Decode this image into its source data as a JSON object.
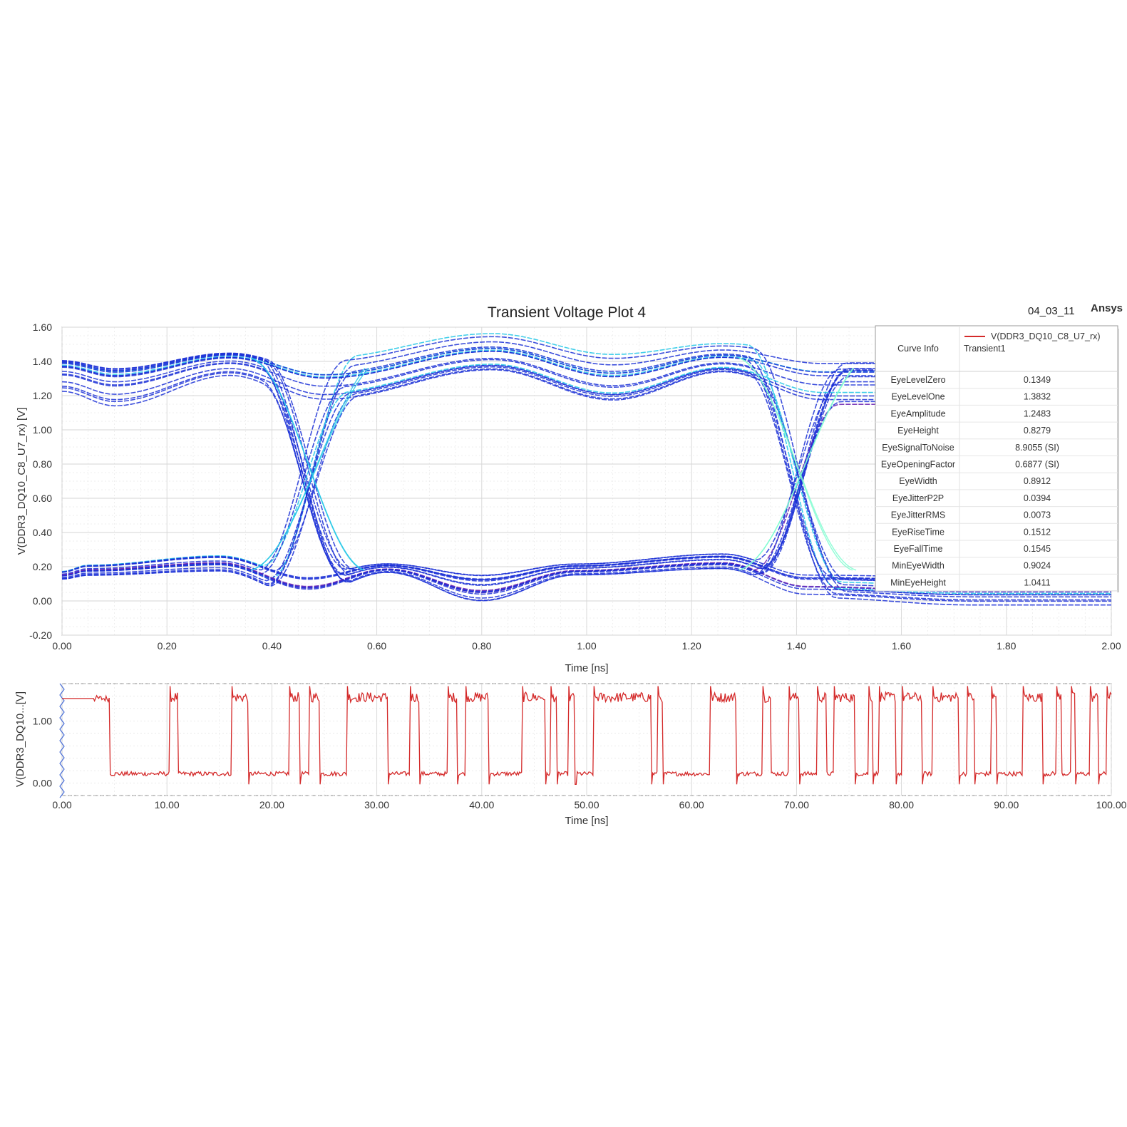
{
  "header": {
    "title": "Transient Voltage Plot 4",
    "date": "04_03_11",
    "brand": "Ansys"
  },
  "colors": {
    "eye_trace": "#1a2fd6",
    "eye_density": "#22c7e6",
    "eye_dense_core": "#7dfccf",
    "eye_low_trace": "#6a1fb0",
    "waveform": "#d42a2a",
    "grid": "#d6d6d6",
    "frame": "#8a8a8a"
  },
  "chart_data": [
    {
      "id": "eye-diagram",
      "type": "line",
      "title": "Transient Voltage Plot 4",
      "xlabel": "Time [ns]",
      "ylabel": "V(DDR3_DQ10_C8_U7_rx) [V]",
      "xlim": [
        0.0,
        2.0
      ],
      "ylim": [
        -0.2,
        1.6
      ],
      "x_ticks": [
        "0.00",
        "0.20",
        "0.40",
        "0.60",
        "0.80",
        "1.00",
        "1.20",
        "1.40",
        "1.60",
        "1.80",
        "2.00"
      ],
      "y_ticks": [
        "-0.20",
        "0.00",
        "0.20",
        "0.40",
        "0.60",
        "0.80",
        "1.00",
        "1.20",
        "1.40",
        "1.60"
      ],
      "grid": true,
      "eye_crossings_ns": [
        0.47,
        1.4
      ],
      "eye_crossing_v": 0.63,
      "high_level_envelope": [
        {
          "x": 0.0,
          "min": 1.2,
          "max": 1.49
        },
        {
          "x": 0.1,
          "min": 1.11,
          "max": 1.46
        },
        {
          "x": 0.32,
          "min": 1.3,
          "max": 1.51
        },
        {
          "x": 0.5,
          "min": 1.12,
          "max": 1.43
        },
        {
          "x": 0.82,
          "min": 1.3,
          "max": 1.57
        },
        {
          "x": 1.05,
          "min": 1.11,
          "max": 1.45
        },
        {
          "x": 1.26,
          "min": 1.3,
          "max": 1.51
        },
        {
          "x": 1.45,
          "min": 1.11,
          "max": 1.46
        }
      ],
      "low_level_envelope": [
        {
          "x": 0.0,
          "min": 0.12,
          "max": 0.18
        },
        {
          "x": 0.05,
          "min": 0.14,
          "max": 0.22
        },
        {
          "x": 0.3,
          "min": 0.16,
          "max": 0.28
        },
        {
          "x": 0.47,
          "min": 0.0,
          "max": 0.16
        },
        {
          "x": 0.62,
          "min": 0.15,
          "max": 0.22
        },
        {
          "x": 0.8,
          "min": -0.05,
          "max": 0.16
        },
        {
          "x": 0.98,
          "min": 0.13,
          "max": 0.22
        },
        {
          "x": 1.26,
          "min": 0.16,
          "max": 0.28
        },
        {
          "x": 1.42,
          "min": 0.0,
          "max": 0.16
        },
        {
          "x": 1.74,
          "min": -0.05,
          "max": 0.15
        }
      ],
      "legend": {
        "placement": "top-right",
        "header": "Curve Info",
        "series_name": "V(DDR3_DQ10_C8_U7_rx)",
        "sweep": "Transient1",
        "metrics": [
          {
            "name": "EyeLevelZero",
            "value": "0.1349"
          },
          {
            "name": "EyeLevelOne",
            "value": "1.3832"
          },
          {
            "name": "EyeAmplitude",
            "value": "1.2483"
          },
          {
            "name": "EyeHeight",
            "value": "0.8279"
          },
          {
            "name": "EyeSignalToNoise",
            "value": "8.9055 (SI)"
          },
          {
            "name": "EyeOpeningFactor",
            "value": "0.6877 (SI)"
          },
          {
            "name": "EyeWidth",
            "value": "0.8912"
          },
          {
            "name": "EyeJitterP2P",
            "value": "0.0394"
          },
          {
            "name": "EyeJitterRMS",
            "value": "0.0073"
          },
          {
            "name": "EyeRiseTime",
            "value": "0.1512"
          },
          {
            "name": "EyeFallTime",
            "value": "0.1545"
          },
          {
            "name": "MinEyeWidth",
            "value": "0.9024"
          },
          {
            "name": "MinEyeHeight",
            "value": "1.0411"
          }
        ]
      }
    },
    {
      "id": "time-waveform",
      "type": "line",
      "xlabel": "Time [ns]",
      "ylabel": "V(DDR3_DQ10...[V]",
      "xlim": [
        0.0,
        100.0
      ],
      "ylim": [
        -0.2,
        1.6
      ],
      "x_ticks": [
        "0.00",
        "10.00",
        "20.00",
        "30.00",
        "40.00",
        "50.00",
        "60.00",
        "70.00",
        "80.00",
        "90.00",
        "100.00"
      ],
      "y_ticks": [
        "0.00",
        "1.00"
      ],
      "grid": true,
      "initial_level_v": 1.36,
      "low_level_v": 0.15,
      "high_level_v": 1.38,
      "high_pulses_ns": [
        [
          10.3,
          11.0
        ],
        [
          16.2,
          17.7
        ],
        [
          21.7,
          22.6
        ],
        [
          23.6,
          24.5
        ],
        [
          27.2,
          31.0
        ],
        [
          33.2,
          34.0
        ],
        [
          36.8,
          37.6
        ],
        [
          38.5,
          40.6
        ],
        [
          43.9,
          46.0
        ],
        [
          46.6,
          47.1
        ],
        [
          48.3,
          48.9
        ],
        [
          50.7,
          56.1
        ],
        [
          56.8,
          57.3
        ],
        [
          61.8,
          64.2
        ],
        [
          66.8,
          67.5
        ],
        [
          69.3,
          70.2
        ],
        [
          72.0,
          72.8
        ],
        [
          73.6,
          75.6
        ],
        [
          76.9,
          77.3
        ],
        [
          77.9,
          79.4
        ],
        [
          80.1,
          81.9
        ],
        [
          83.0,
          85.4
        ],
        [
          86.3,
          86.9
        ],
        [
          88.6,
          89.1
        ],
        [
          91.6,
          93.4
        ],
        [
          94.8,
          95.2
        ],
        [
          96.2,
          96.6
        ],
        [
          98.0,
          98.8
        ],
        [
          99.6,
          100.0
        ]
      ]
    }
  ]
}
